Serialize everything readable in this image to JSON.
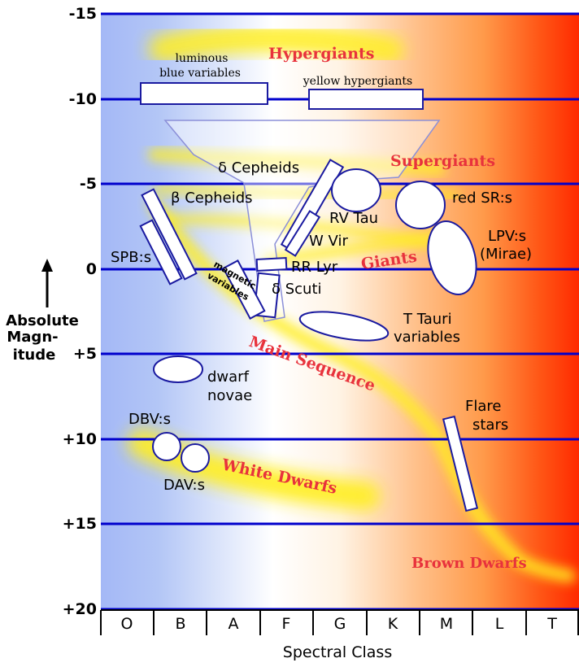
{
  "y_axis": {
    "title_lines": [
      "Absolute",
      "Magn-",
      "itude"
    ],
    "ticks": [
      "-15",
      "-10",
      "-5",
      "0",
      "+5",
      "+10",
      "+15",
      "+20"
    ]
  },
  "x_axis": {
    "title": "Spectral Class",
    "classes": [
      "O",
      "B",
      "A",
      "F",
      "G",
      "K",
      "M",
      "L",
      "T"
    ]
  },
  "region_labels": {
    "hypergiants": "Hypergiants",
    "supergiants": "Supergiants",
    "giants": "Giants",
    "main_sequence": "Main Sequence",
    "white_dwarfs": "White Dwarfs",
    "brown_dwarfs": "Brown Dwarfs"
  },
  "variable_labels": {
    "lbv_line1": "luminous",
    "lbv_line2": "blue variables",
    "yellow_hypergiants": "yellow hypergiants",
    "delta_cepheids": "δ Cepheids",
    "beta_cepheids": "β Cepheids",
    "rv_tau": "RV Tau",
    "red_sr": "red SR:s",
    "w_vir": "W Vir",
    "lpv_line1": "LPV:s",
    "lpv_line2": "(Mirae)",
    "spb": "SPB:s",
    "rr_lyr": "RR Lyr",
    "magnetic_line1": "magnetic",
    "magnetic_line2": "variables",
    "delta_scuti": "δ Scuti",
    "t_tauri_line1": "T Tauri",
    "t_tauri_line2": "variables",
    "dwarf_novae_line1": "dwarf",
    "dwarf_novae_line2": "novae",
    "flare_line1": "Flare",
    "flare_line2": "stars",
    "dbv": "DBV:s",
    "dav": "DAV:s"
  },
  "colors": {
    "gridline": "#0000cc",
    "region_label": "#e8323c",
    "glow_yellow": "#ffee22",
    "bg_blue": "#a4b8f6",
    "bg_white": "#ffffff",
    "bg_orange": "#ff9a4a",
    "bg_red": "#ff2a00",
    "box_outline": "#1a1aa0"
  }
}
